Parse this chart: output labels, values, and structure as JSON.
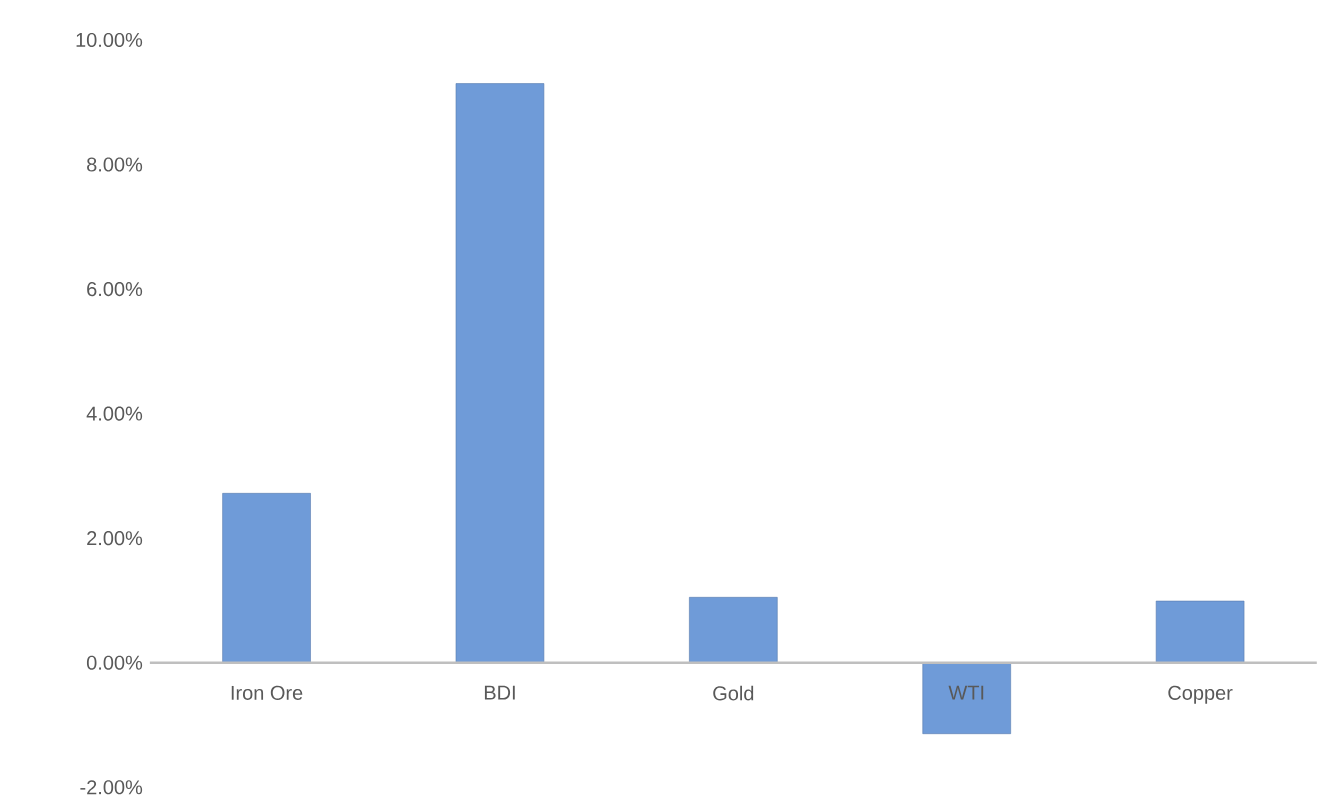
{
  "chart_data": {
    "type": "bar",
    "categories": [
      "Iron Ore",
      "BDI",
      "Gold",
      "WTI",
      "Copper"
    ],
    "values": [
      2.72,
      9.3,
      1.05,
      -1.14,
      0.99
    ],
    "color": "#6f9bd8",
    "ylim": [
      -2,
      10
    ],
    "yticks": [
      {
        "value": -2,
        "label": "-2.00%"
      },
      {
        "value": 0,
        "label": "0.00%"
      },
      {
        "value": 2,
        "label": "2.00%"
      },
      {
        "value": 4,
        "label": "4.00%"
      },
      {
        "value": 6,
        "label": "6.00%"
      },
      {
        "value": 8,
        "label": "8.00%"
      },
      {
        "value": 10,
        "label": "10.00%"
      }
    ],
    "grid": false
  }
}
